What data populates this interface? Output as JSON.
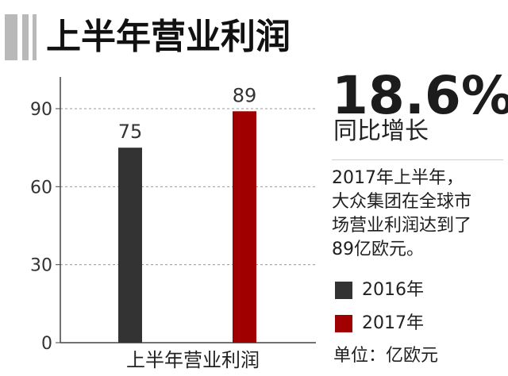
{
  "title": "上半年营业利润",
  "highlight": {
    "value": "18.6%",
    "label": "同比增长"
  },
  "description": [
    "2017年上半年，",
    "大众集团在全球市",
    "场营业利润达到了",
    "89亿欧元。"
  ],
  "unit_label": "单位：亿欧元",
  "colors": {
    "series_2016": "#333333",
    "series_2017": "#a00000",
    "title_bars": "#b9b9b9"
  },
  "chart_data": {
    "type": "bar",
    "categories": [
      "上半年营业利润"
    ],
    "series": [
      {
        "name": "2016年",
        "values": [
          75
        ]
      },
      {
        "name": "2017年",
        "values": [
          89
        ]
      }
    ],
    "ylim": [
      0,
      90
    ],
    "yticks": [
      "0",
      "30",
      "60",
      "90"
    ],
    "xlabel": "",
    "ylabel": "",
    "grid": true,
    "legend": "right"
  }
}
